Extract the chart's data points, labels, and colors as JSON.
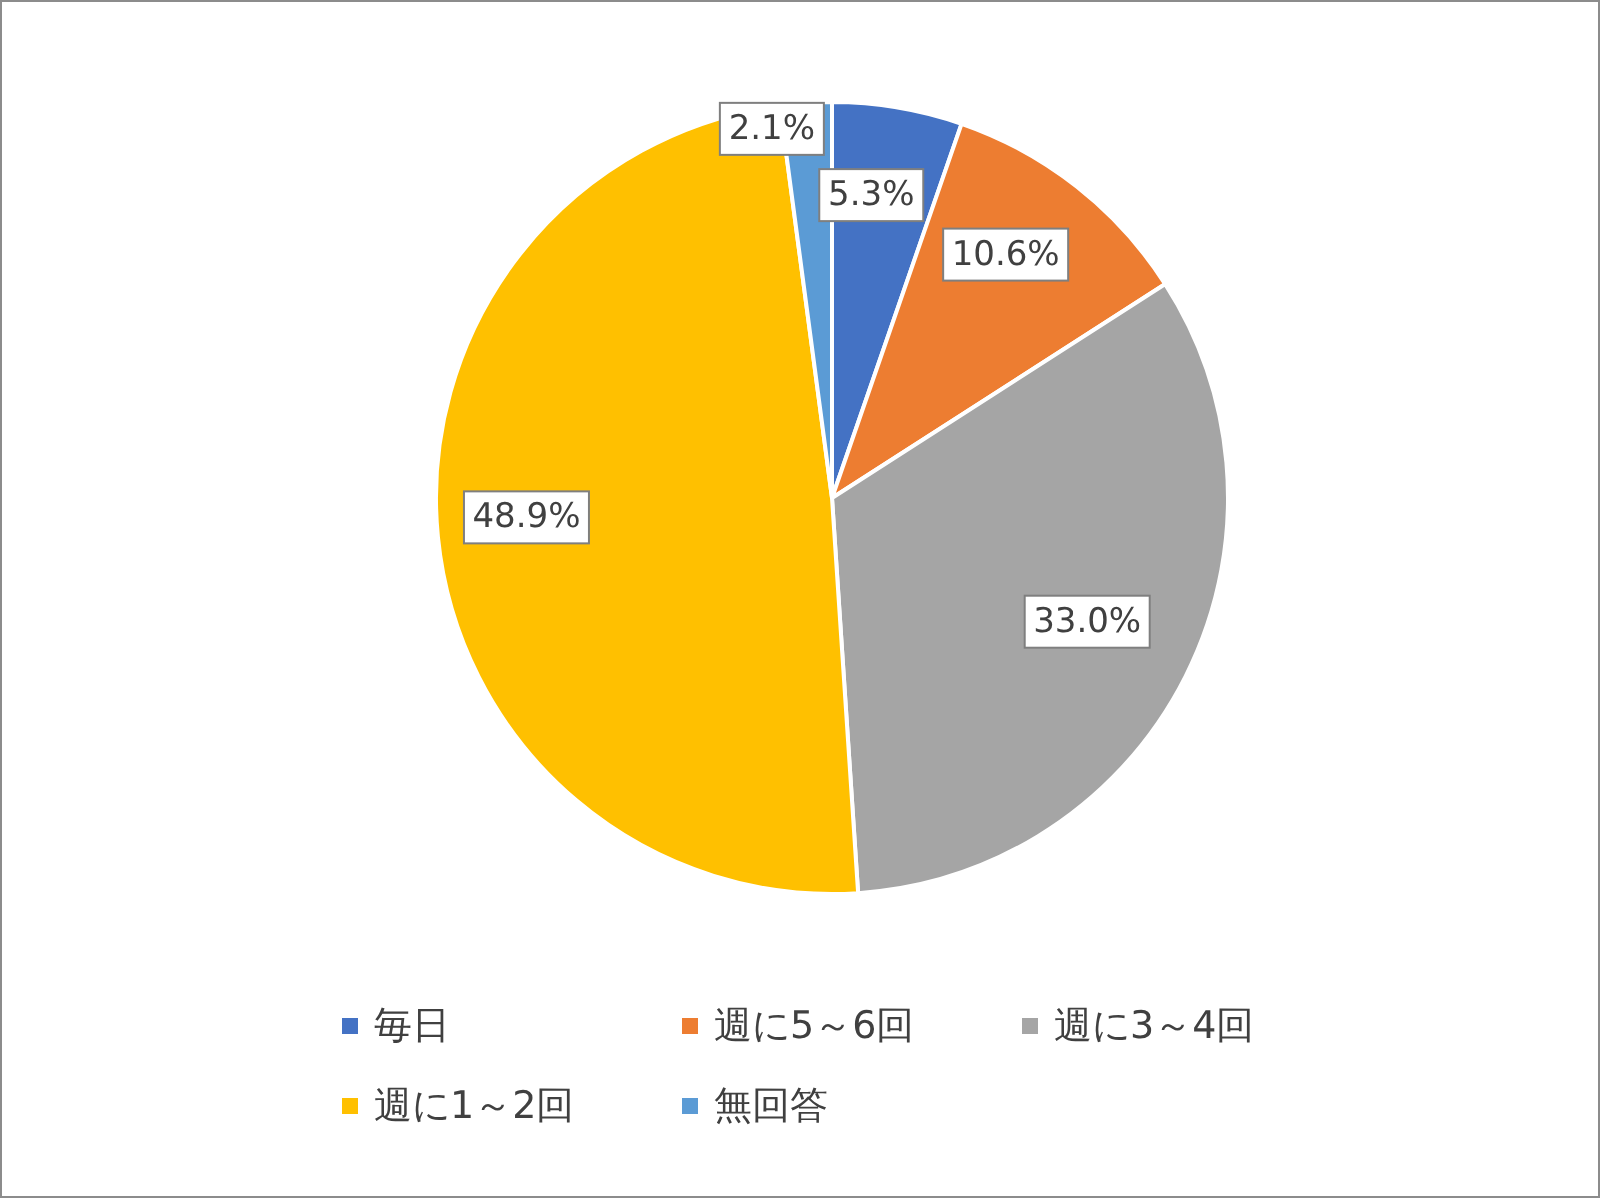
{
  "chart_data": {
    "type": "pie",
    "categories": [
      "毎日",
      "週に5～6回",
      "週に3～4回",
      "週に1～2回",
      "無回答"
    ],
    "values": [
      5.3,
      10.6,
      33.0,
      48.9,
      2.1
    ],
    "colors": [
      "#4472c4",
      "#ed7d31",
      "#a5a5a5",
      "#ffc000",
      "#5b9bd5"
    ],
    "value_labels": [
      "5.3%",
      "10.6%",
      "33.0%",
      "48.9%",
      "2.1%"
    ],
    "legend": "bottom"
  }
}
